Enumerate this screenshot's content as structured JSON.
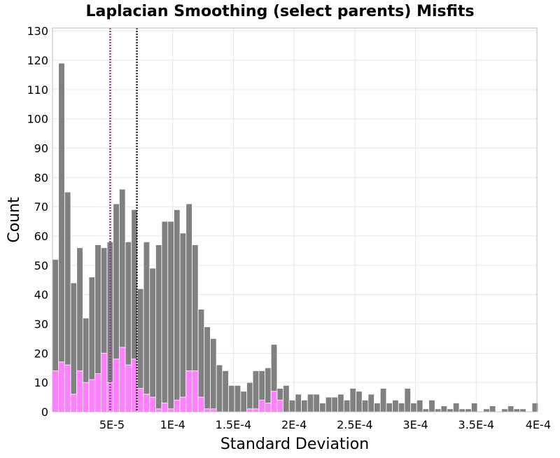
{
  "chart_data": {
    "type": "bar",
    "title": "Laplacian Smoothing (select parents) Misfits",
    "xlabel": "Standard Deviation",
    "ylabel": "Count",
    "xlim": [
      1e-06,
      0.0004
    ],
    "ylim": [
      0,
      131
    ],
    "x_ticks": [
      {
        "value": 5e-05,
        "label": "5E-5"
      },
      {
        "value": 0.0001,
        "label": "1E-4"
      },
      {
        "value": 0.00015,
        "label": "1.5E-4"
      },
      {
        "value": 0.0002,
        "label": "2E-4"
      },
      {
        "value": 0.00025,
        "label": "2.5E-4"
      },
      {
        "value": 0.0003,
        "label": "3E-4"
      },
      {
        "value": 0.00035,
        "label": "3.5E-4"
      },
      {
        "value": 0.0004,
        "label": "4E-4"
      }
    ],
    "y_ticks": [
      0,
      10,
      20,
      30,
      40,
      50,
      60,
      70,
      80,
      90,
      100,
      110,
      120,
      130
    ],
    "bin_start": 1e-06,
    "bin_width": 5e-06,
    "grid": true,
    "series": [
      {
        "color": "#808080",
        "values": [
          52,
          119,
          75,
          44,
          56,
          32,
          46,
          57,
          56,
          58,
          71,
          76,
          58,
          69,
          42,
          58,
          49,
          57,
          65,
          65,
          69,
          61,
          71,
          57,
          35,
          29,
          25,
          16,
          14,
          9,
          9,
          7,
          10,
          14,
          14,
          15,
          23,
          8,
          9,
          4,
          6,
          4,
          6,
          6,
          3,
          5,
          5,
          6,
          4,
          8,
          7,
          4,
          6,
          3,
          8,
          3,
          4,
          3,
          8,
          3,
          4,
          1,
          4,
          1,
          2,
          1,
          3,
          1,
          1,
          3,
          0,
          1,
          2,
          0,
          1,
          2,
          1,
          1,
          0,
          3
        ]
      },
      {
        "color": "#ff80ff",
        "values": [
          14,
          17,
          16,
          6,
          14,
          10,
          11,
          13,
          20,
          10,
          18,
          22,
          16,
          18,
          8,
          6,
          5,
          1,
          3,
          1,
          4,
          5,
          14,
          14,
          5,
          1,
          1,
          0,
          0,
          0,
          0,
          0,
          1,
          1,
          4,
          3,
          7,
          4,
          0,
          0,
          0,
          0,
          0,
          0,
          0,
          0,
          0,
          0,
          0,
          0,
          0,
          0,
          0,
          0,
          0,
          0,
          0,
          0,
          0,
          0,
          0,
          0,
          0,
          0,
          0,
          0,
          0,
          0,
          0,
          0,
          0,
          0,
          0,
          0,
          0,
          0,
          0,
          0,
          0,
          0
        ]
      }
    ],
    "vertical_lines": [
      {
        "x": 4.85e-05,
        "color": "#8a3a8a",
        "style": "dotted"
      },
      {
        "x": 7.05e-05,
        "color": "#2a2a2a",
        "style": "dotted"
      }
    ]
  }
}
